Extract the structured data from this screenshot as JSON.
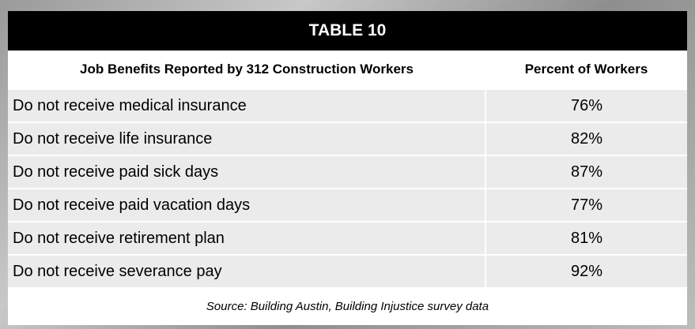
{
  "table": {
    "title": "TABLE 10",
    "columns": [
      "Job Benefits Reported by 312 Construction Workers",
      "Percent of Workers"
    ],
    "rows": [
      [
        "Do not receive medical insurance",
        "76%"
      ],
      [
        "Do not receive life insurance",
        "82%"
      ],
      [
        "Do not receive paid sick days",
        "87%"
      ],
      [
        "Do not receive paid vacation days",
        "77%"
      ],
      [
        "Do not receive retirement plan",
        "81%"
      ],
      [
        "Do not receive severance pay",
        "92%"
      ]
    ],
    "source": "Source: Building Austin, Building Injustice survey data"
  }
}
